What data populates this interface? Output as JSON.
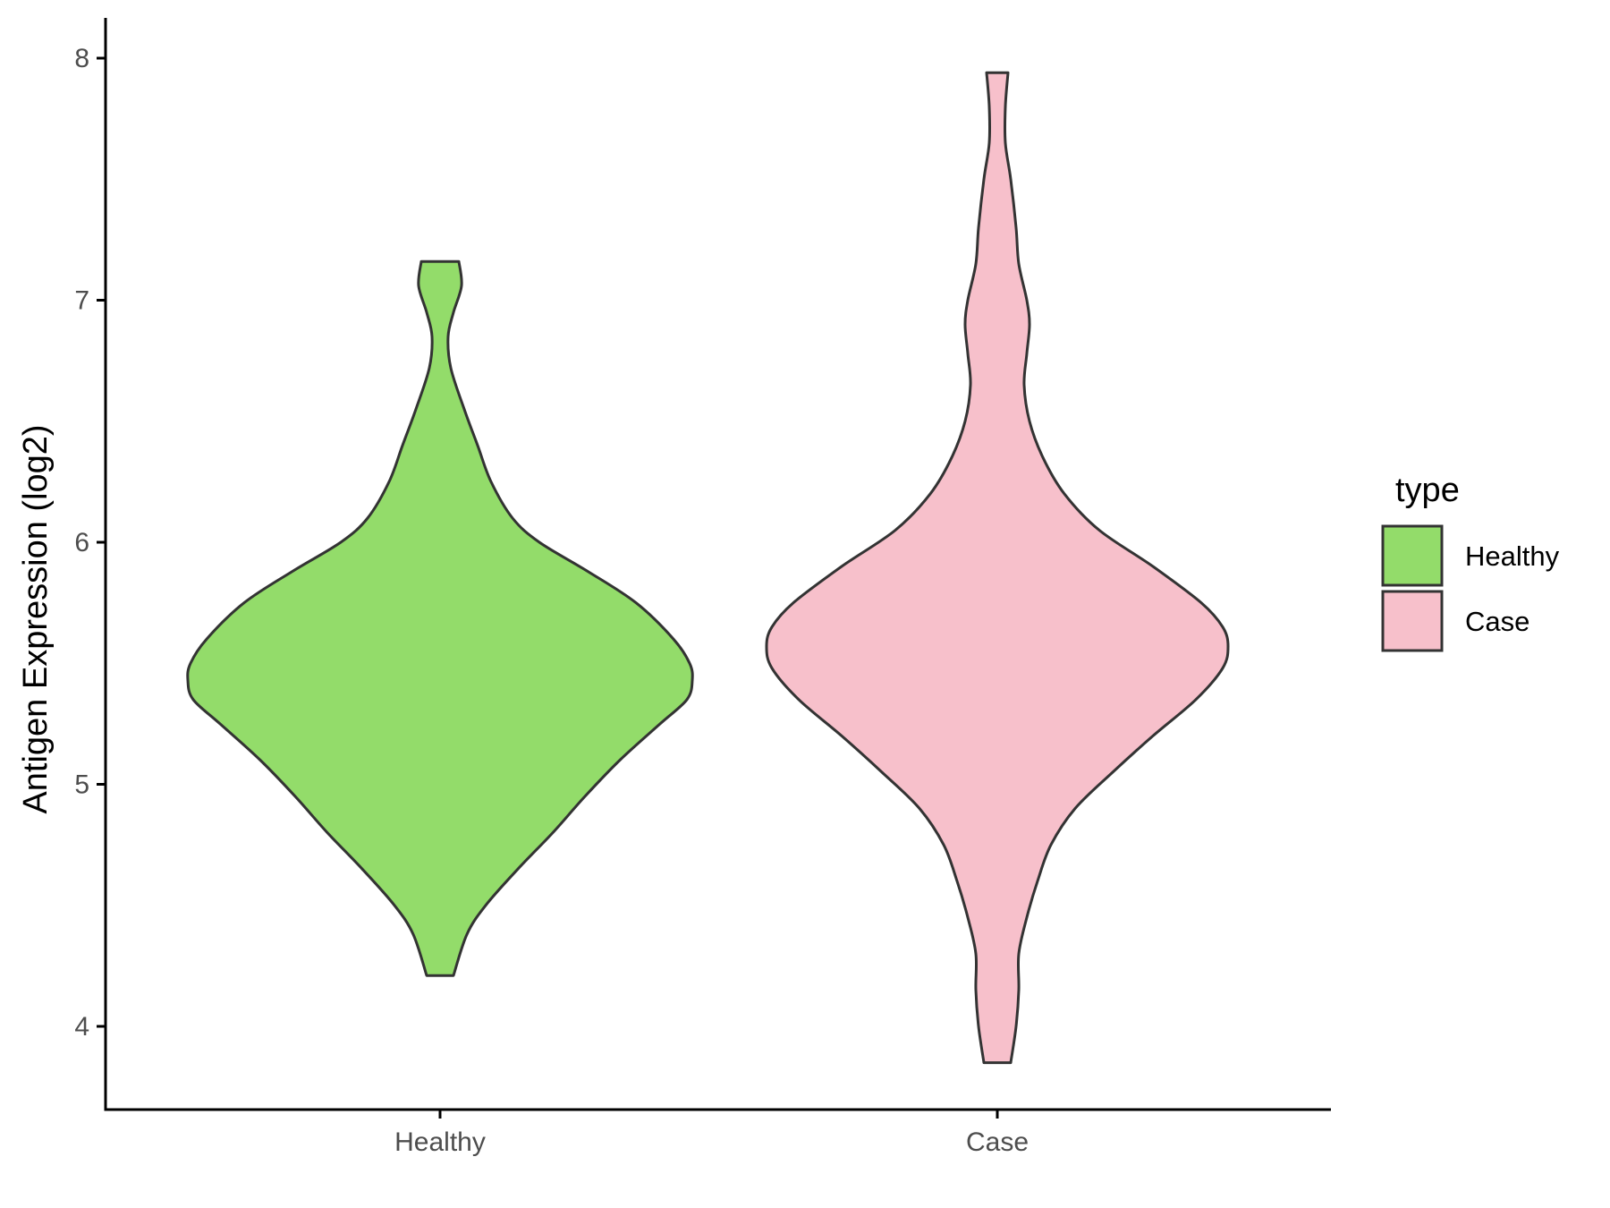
{
  "chart_data": {
    "type": "violin",
    "categories": [
      "Healthy",
      "Case"
    ],
    "ylabel": "Antigen Expression (log2)",
    "xlabel": "",
    "ylim": [
      3.65,
      8.15
    ],
    "yticks": [
      "4",
      "5",
      "6",
      "7",
      "8"
    ],
    "grid": false,
    "legend": {
      "title": "type",
      "position": "right",
      "entries": [
        {
          "label": "Healthy",
          "color": "#93dc6a"
        },
        {
          "label": "Case",
          "color": "#f7c0cb"
        }
      ]
    },
    "series": [
      {
        "name": "Healthy",
        "color": "#93dc6a",
        "min": 4.21,
        "max": 7.16,
        "profile": [
          [
            7.16,
            0.07
          ],
          [
            7.06,
            0.08
          ],
          [
            6.95,
            0.05
          ],
          [
            6.85,
            0.03
          ],
          [
            6.72,
            0.04
          ],
          [
            6.55,
            0.09
          ],
          [
            6.4,
            0.14
          ],
          [
            6.25,
            0.19
          ],
          [
            6.1,
            0.27
          ],
          [
            6.0,
            0.37
          ],
          [
            5.88,
            0.55
          ],
          [
            5.75,
            0.73
          ],
          [
            5.6,
            0.87
          ],
          [
            5.5,
            0.93
          ],
          [
            5.43,
            0.94
          ],
          [
            5.35,
            0.92
          ],
          [
            5.25,
            0.82
          ],
          [
            5.1,
            0.67
          ],
          [
            4.95,
            0.54
          ],
          [
            4.8,
            0.42
          ],
          [
            4.65,
            0.29
          ],
          [
            4.5,
            0.17
          ],
          [
            4.38,
            0.1
          ],
          [
            4.21,
            0.05
          ]
        ]
      },
      {
        "name": "Case",
        "color": "#f7c0cb",
        "min": 3.85,
        "max": 7.94,
        "profile": [
          [
            7.94,
            0.04
          ],
          [
            7.8,
            0.03
          ],
          [
            7.65,
            0.03
          ],
          [
            7.5,
            0.05
          ],
          [
            7.3,
            0.07
          ],
          [
            7.15,
            0.08
          ],
          [
            7.0,
            0.11
          ],
          [
            6.9,
            0.12
          ],
          [
            6.78,
            0.11
          ],
          [
            6.65,
            0.1
          ],
          [
            6.5,
            0.12
          ],
          [
            6.35,
            0.17
          ],
          [
            6.2,
            0.25
          ],
          [
            6.05,
            0.38
          ],
          [
            5.9,
            0.58
          ],
          [
            5.75,
            0.76
          ],
          [
            5.65,
            0.84
          ],
          [
            5.57,
            0.86
          ],
          [
            5.48,
            0.84
          ],
          [
            5.35,
            0.74
          ],
          [
            5.2,
            0.58
          ],
          [
            5.05,
            0.43
          ],
          [
            4.9,
            0.29
          ],
          [
            4.75,
            0.2
          ],
          [
            4.6,
            0.15
          ],
          [
            4.45,
            0.11
          ],
          [
            4.3,
            0.08
          ],
          [
            4.15,
            0.08
          ],
          [
            4.0,
            0.07
          ],
          [
            3.85,
            0.05
          ]
        ]
      }
    ]
  }
}
